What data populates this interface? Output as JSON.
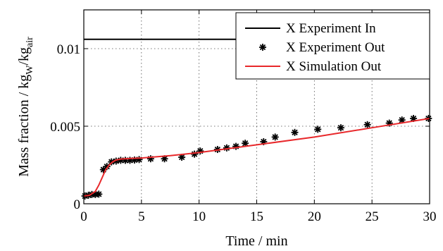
{
  "chart_data": {
    "type": "line",
    "title": "",
    "xlabel": "Time / min",
    "ylabel": {
      "base": "Mass fraction / kg",
      "sub1": "W",
      "mid": "/kg",
      "sub2": "air"
    },
    "xlim": [
      0,
      30
    ],
    "ylim": [
      0,
      0.0125
    ],
    "xticks": [
      0,
      5,
      10,
      15,
      20,
      25,
      30
    ],
    "xtick_labels": [
      "0",
      "5",
      "10",
      "15",
      "20",
      "25",
      "30"
    ],
    "yticks": [
      0,
      0.005,
      0.01
    ],
    "ytick_labels": [
      "0",
      "0.005",
      "0.01"
    ],
    "grid": true,
    "legend_position": "top-right",
    "series": [
      {
        "name": "X Experiment In",
        "style": "line",
        "color": "#000000",
        "x": [
          0,
          30
        ],
        "y": [
          0.0106,
          0.0106
        ]
      },
      {
        "name": "X Experiment Out",
        "style": "markers",
        "marker": "asterisk",
        "color": "#000000",
        "x": [
          0.1,
          0.4,
          0.7,
          1.0,
          1.3,
          1.7,
          2.0,
          2.4,
          2.8,
          3.2,
          3.6,
          4.0,
          4.4,
          4.8,
          5.8,
          7.0,
          8.5,
          9.6,
          10.1,
          11.6,
          12.4,
          13.2,
          14.0,
          15.6,
          16.6,
          18.3,
          20.3,
          22.3,
          24.6,
          26.5,
          27.6,
          28.6,
          29.9
        ],
        "y": [
          0.0005,
          0.00055,
          0.0006,
          0.0006,
          0.00062,
          0.0022,
          0.0024,
          0.0027,
          0.00275,
          0.0028,
          0.0028,
          0.0028,
          0.00282,
          0.00285,
          0.0029,
          0.0029,
          0.003,
          0.0032,
          0.0034,
          0.0035,
          0.0036,
          0.0037,
          0.0039,
          0.004,
          0.0043,
          0.0046,
          0.0048,
          0.0049,
          0.0051,
          0.0052,
          0.0054,
          0.0055,
          0.0055
        ]
      },
      {
        "name": "X Simulation Out",
        "style": "line",
        "color": "#e8282b",
        "x": [
          0,
          0.5,
          1.0,
          1.3,
          1.6,
          1.9,
          2.2,
          2.5,
          2.8,
          3.2,
          3.6,
          4.0,
          5.0,
          7.5,
          10.0,
          15.0,
          20.0,
          25.0,
          30.0
        ],
        "y": [
          0.0005,
          0.00055,
          0.0008,
          0.0012,
          0.0017,
          0.0022,
          0.0025,
          0.0027,
          0.00282,
          0.00288,
          0.0029,
          0.00292,
          0.00295,
          0.0031,
          0.0033,
          0.0038,
          0.0043,
          0.0049,
          0.0055
        ]
      }
    ]
  }
}
